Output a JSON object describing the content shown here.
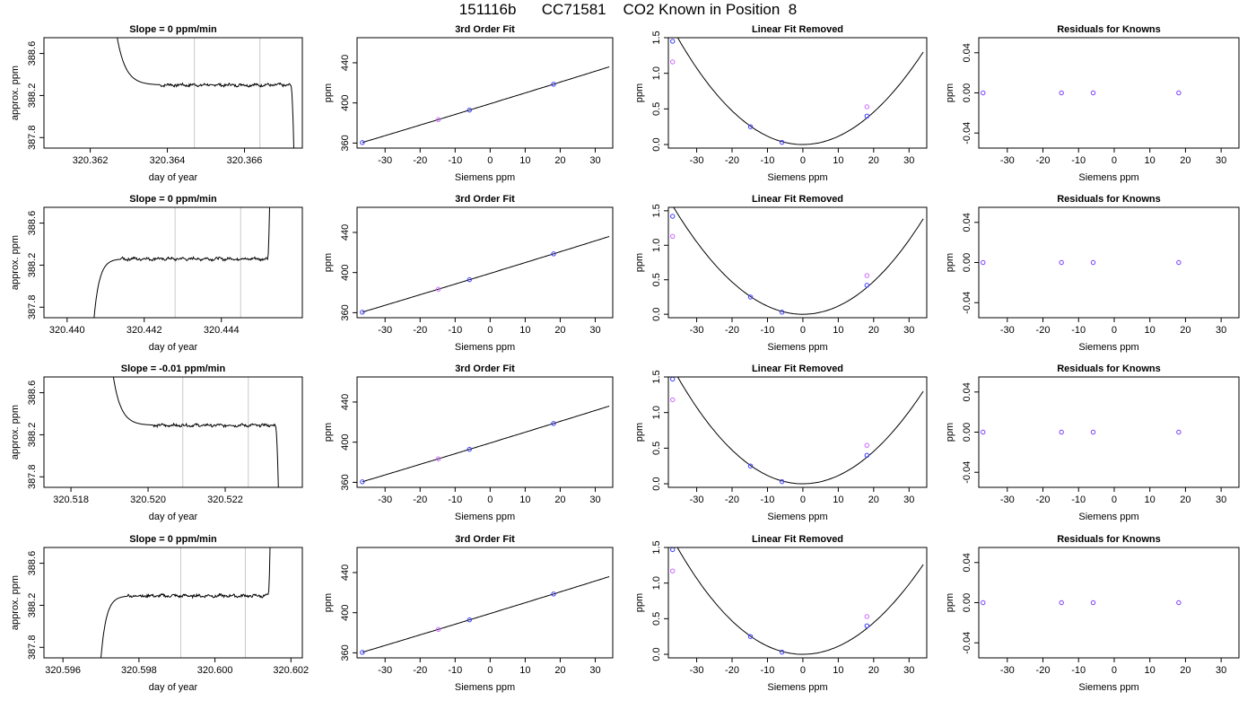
{
  "page": {
    "title": "151116b      CC71581    CO2 Known in Position  8"
  },
  "chart_data": [
    {
      "type": "line",
      "title": "Slope =  0  ppm/min",
      "xlabel": "day of year",
      "ylabel": "approx. ppm",
      "xlim": [
        320.3608,
        320.3675
      ],
      "ylim": [
        387.7,
        388.75
      ],
      "x_ticks": [
        "320.362",
        "320.364",
        "320.366"
      ],
      "x_tick_values": [
        320.362,
        320.364,
        320.366
      ],
      "y_ticks": [
        "387.8",
        "388.2",
        "388.6"
      ],
      "y_tick_values": [
        387.8,
        388.2,
        388.6
      ],
      "vlines": [
        320.3647,
        320.3664
      ],
      "vline_color": "#c8c8c8",
      "trace": {
        "steady": 388.3,
        "noise": 0.012,
        "x_start_high": 320.3627,
        "x_settle": 320.3638,
        "x_end_flat": 320.3672,
        "x_end": 320.36728,
        "start_value": 388.75,
        "end_value": 387.7
      },
      "color": "#000000"
    },
    {
      "type": "line",
      "title": "3rd Order Fit",
      "xlabel": "Siemens ppm",
      "ylabel": "ppm",
      "xlim": [
        -38,
        35
      ],
      "ylim": [
        355,
        465
      ],
      "x_ticks": [
        "-30",
        "-20",
        "-10",
        "0",
        "10",
        "20",
        "30"
      ],
      "x_tick_values": [
        -30,
        -20,
        -10,
        0,
        10,
        20,
        30
      ],
      "y_ticks": [
        "360",
        "400",
        "440"
      ],
      "y_tick_values": [
        360,
        400,
        440
      ],
      "curve": {
        "from": -36.5,
        "to": 34,
        "coef": [
          399.2,
          1.07,
          0.0003,
          0
        ]
      },
      "points": [
        {
          "x": -36.5,
          "y": 360.5,
          "color": "#3a3aff"
        },
        {
          "x": -14.8,
          "y": 383.4,
          "color": "#cc66ff"
        },
        {
          "x": -5.9,
          "y": 392.9,
          "color": "#3a3aff"
        },
        {
          "x": 18.1,
          "y": 418.6,
          "color": "#3a3aff"
        }
      ]
    },
    {
      "type": "line",
      "title": "Linear Fit Removed",
      "xlabel": "Siemens ppm",
      "ylabel": "ppm",
      "xlim": [
        -38,
        35
      ],
      "ylim": [
        -0.05,
        1.5
      ],
      "x_ticks": [
        "-30",
        "-20",
        "-10",
        "0",
        "10",
        "20",
        "30"
      ],
      "x_tick_values": [
        -30,
        -20,
        -10,
        0,
        10,
        20,
        30
      ],
      "y_ticks": [
        "0.0",
        "0.5",
        "1.0",
        "1.5"
      ],
      "y_tick_values": [
        0.0,
        0.5,
        1.0,
        1.5
      ],
      "curve": {
        "from": -36.8,
        "to": 34,
        "coef": [
          0,
          0,
          0.00116,
          -1.1e-06
        ]
      },
      "points": [
        {
          "x": -36.8,
          "y": 1.45,
          "color": "#3a3aff"
        },
        {
          "x": -36.8,
          "y": 1.16,
          "color": "#cc66ff"
        },
        {
          "x": -14.8,
          "y": 0.25,
          "color": "#3a3aff"
        },
        {
          "x": -5.9,
          "y": 0.03,
          "color": "#3a3aff"
        },
        {
          "x": 18.1,
          "y": 0.4,
          "color": "#3a3aff"
        },
        {
          "x": 18.1,
          "y": 0.53,
          "color": "#cc66ff"
        }
      ]
    },
    {
      "type": "scatter",
      "title": "Residuals for Knowns",
      "xlabel": "Siemens ppm",
      "ylabel": "ppm",
      "xlim": [
        -38,
        35
      ],
      "ylim": [
        -0.055,
        0.055
      ],
      "x_ticks": [
        "-30",
        "-20",
        "-10",
        "0",
        "10",
        "20",
        "30"
      ],
      "x_tick_values": [
        -30,
        -20,
        -10,
        0,
        10,
        20,
        30
      ],
      "y_ticks": [
        "-0.04",
        "0.00",
        "0.04"
      ],
      "y_tick_values": [
        -0.04,
        0.0,
        0.04
      ],
      "points": [
        {
          "x": -36.8,
          "y": 0,
          "color": "#7a3aff"
        },
        {
          "x": -14.8,
          "y": 0,
          "color": "#7a3aff"
        },
        {
          "x": -5.9,
          "y": 0,
          "color": "#7a3aff"
        },
        {
          "x": 18.1,
          "y": 0,
          "color": "#7a3aff"
        }
      ]
    },
    {
      "type": "line",
      "title": "Slope =  0  ppm/min",
      "xlabel": "day of year",
      "ylabel": "approx. ppm",
      "xlim": [
        320.4394,
        320.4461
      ],
      "ylim": [
        387.7,
        388.75
      ],
      "x_ticks": [
        "320.440",
        "320.442",
        "320.444"
      ],
      "x_tick_values": [
        320.44,
        320.442,
        320.444
      ],
      "y_ticks": [
        "387.8",
        "388.2",
        "388.6"
      ],
      "y_tick_values": [
        387.8,
        388.2,
        388.6
      ],
      "vlines": [
        320.4428,
        320.4445
      ],
      "vline_color": "#c8c8c8",
      "trace": {
        "steady": 388.26,
        "noise": 0.012,
        "x_start_low": 320.4407,
        "x_settle": 320.4414,
        "x_end_flat": 320.4452,
        "x_end": 320.44525,
        "start_value": 387.7,
        "end_value": 388.75
      },
      "color": "#000000"
    },
    {
      "type": "line",
      "title": "3rd Order Fit",
      "xlabel": "Siemens ppm",
      "ylabel": "ppm",
      "xlim": [
        -38,
        35
      ],
      "ylim": [
        355,
        465
      ],
      "x_ticks": [
        "-30",
        "-20",
        "-10",
        "0",
        "10",
        "20",
        "30"
      ],
      "x_tick_values": [
        -30,
        -20,
        -10,
        0,
        10,
        20,
        30
      ],
      "y_ticks": [
        "360",
        "400",
        "440"
      ],
      "y_tick_values": [
        360,
        400,
        440
      ],
      "curve": {
        "from": -36.5,
        "to": 34,
        "coef": [
          399.2,
          1.07,
          0.0003,
          0
        ]
      },
      "points": [
        {
          "x": -36.5,
          "y": 360.5,
          "color": "#3a3aff"
        },
        {
          "x": -14.8,
          "y": 383.4,
          "color": "#cc66ff"
        },
        {
          "x": -5.9,
          "y": 392.9,
          "color": "#3a3aff"
        },
        {
          "x": 18.1,
          "y": 418.6,
          "color": "#3a3aff"
        }
      ]
    },
    {
      "type": "line",
      "title": "Linear Fit Removed",
      "xlabel": "Siemens ppm",
      "ylabel": "ppm",
      "xlim": [
        -38,
        35
      ],
      "ylim": [
        -0.05,
        1.55
      ],
      "x_ticks": [
        "-30",
        "-20",
        "-10",
        "0",
        "10",
        "20",
        "30"
      ],
      "x_tick_values": [
        -30,
        -20,
        -10,
        0,
        10,
        20,
        30
      ],
      "y_ticks": [
        "0.0",
        "0.5",
        "1.0",
        "1.5"
      ],
      "y_tick_values": [
        0.0,
        0.5,
        1.0,
        1.5
      ],
      "curve": {
        "from": -36.8,
        "to": 34,
        "coef": [
          0,
          0,
          0.00118,
          5e-07
        ]
      },
      "points": [
        {
          "x": -36.8,
          "y": 1.42,
          "color": "#3a3aff"
        },
        {
          "x": -36.8,
          "y": 1.13,
          "color": "#cc66ff"
        },
        {
          "x": -14.8,
          "y": 0.25,
          "color": "#3a3aff"
        },
        {
          "x": -5.9,
          "y": 0.03,
          "color": "#3a3aff"
        },
        {
          "x": 18.1,
          "y": 0.42,
          "color": "#3a3aff"
        },
        {
          "x": 18.1,
          "y": 0.56,
          "color": "#cc66ff"
        }
      ]
    },
    {
      "type": "scatter",
      "title": "Residuals for Knowns",
      "xlabel": "Siemens ppm",
      "ylabel": "ppm",
      "xlim": [
        -38,
        35
      ],
      "ylim": [
        -0.055,
        0.055
      ],
      "x_ticks": [
        "-30",
        "-20",
        "-10",
        "0",
        "10",
        "20",
        "30"
      ],
      "x_tick_values": [
        -30,
        -20,
        -10,
        0,
        10,
        20,
        30
      ],
      "y_ticks": [
        "-0.04",
        "0.00",
        "0.04"
      ],
      "y_tick_values": [
        -0.04,
        0.0,
        0.04
      ],
      "points": [
        {
          "x": -36.8,
          "y": 0,
          "color": "#7a3aff"
        },
        {
          "x": -14.8,
          "y": 0,
          "color": "#7a3aff"
        },
        {
          "x": -5.9,
          "y": 0,
          "color": "#7a3aff"
        },
        {
          "x": 18.1,
          "y": 0,
          "color": "#7a3aff"
        }
      ]
    },
    {
      "type": "line",
      "title": "Slope =  -0.01  ppm/min",
      "xlabel": "day of year",
      "ylabel": "approx. ppm",
      "xlim": [
        320.5173,
        320.524
      ],
      "ylim": [
        387.7,
        388.75
      ],
      "x_ticks": [
        "320.518",
        "320.520",
        "320.522"
      ],
      "x_tick_values": [
        320.518,
        320.52,
        320.522
      ],
      "y_ticks": [
        "387.8",
        "388.2",
        "388.6"
      ],
      "y_tick_values": [
        387.8,
        388.2,
        388.6
      ],
      "vlines": [
        320.5209,
        320.5226
      ],
      "vline_color": "#c8c8c8",
      "trace": {
        "steady": 388.29,
        "noise": 0.011,
        "x_start_high": 320.5191,
        "x_settle": 320.5201,
        "x_end_flat": 320.5233,
        "x_end": 320.52338,
        "start_value": 388.75,
        "end_value": 387.7
      },
      "color": "#000000"
    },
    {
      "type": "line",
      "title": "3rd Order Fit",
      "xlabel": "Siemens ppm",
      "ylabel": "ppm",
      "xlim": [
        -38,
        35
      ],
      "ylim": [
        355,
        465
      ],
      "x_ticks": [
        "-30",
        "-20",
        "-10",
        "0",
        "10",
        "20",
        "30"
      ],
      "x_tick_values": [
        -30,
        -20,
        -10,
        0,
        10,
        20,
        30
      ],
      "y_ticks": [
        "360",
        "400",
        "440"
      ],
      "y_tick_values": [
        360,
        400,
        440
      ],
      "curve": {
        "from": -36.5,
        "to": 34,
        "coef": [
          399.2,
          1.07,
          0.0003,
          0
        ]
      },
      "points": [
        {
          "x": -36.5,
          "y": 360.5,
          "color": "#3a3aff"
        },
        {
          "x": -14.8,
          "y": 383.4,
          "color": "#cc66ff"
        },
        {
          "x": -5.9,
          "y": 392.9,
          "color": "#3a3aff"
        },
        {
          "x": 18.1,
          "y": 418.6,
          "color": "#3a3aff"
        }
      ]
    },
    {
      "type": "line",
      "title": "Linear Fit Removed",
      "xlabel": "Siemens ppm",
      "ylabel": "ppm",
      "xlim": [
        -38,
        35
      ],
      "ylim": [
        -0.05,
        1.5
      ],
      "x_ticks": [
        "-30",
        "-20",
        "-10",
        "0",
        "10",
        "20",
        "30"
      ],
      "x_tick_values": [
        -30,
        -20,
        -10,
        0,
        10,
        20,
        30
      ],
      "y_ticks": [
        "0.0",
        "0.5",
        "1.0",
        "1.5"
      ],
      "y_tick_values": [
        0.0,
        0.5,
        1.0,
        1.5
      ],
      "curve": {
        "from": -36.8,
        "to": 34,
        "coef": [
          0,
          0,
          0.00116,
          -1.1e-06
        ]
      },
      "points": [
        {
          "x": -36.8,
          "y": 1.47,
          "color": "#3a3aff"
        },
        {
          "x": -36.8,
          "y": 1.18,
          "color": "#cc66ff"
        },
        {
          "x": -14.8,
          "y": 0.25,
          "color": "#3a3aff"
        },
        {
          "x": -5.9,
          "y": 0.03,
          "color": "#3a3aff"
        },
        {
          "x": 18.1,
          "y": 0.4,
          "color": "#3a3aff"
        },
        {
          "x": 18.1,
          "y": 0.54,
          "color": "#cc66ff"
        }
      ]
    },
    {
      "type": "scatter",
      "title": "Residuals for Knowns",
      "xlabel": "Siemens ppm",
      "ylabel": "ppm",
      "xlim": [
        -38,
        35
      ],
      "ylim": [
        -0.055,
        0.055
      ],
      "x_ticks": [
        "-30",
        "-20",
        "-10",
        "0",
        "10",
        "20",
        "30"
      ],
      "x_tick_values": [
        -30,
        -20,
        -10,
        0,
        10,
        20,
        30
      ],
      "y_ticks": [
        "-0.04",
        "0.00",
        "0.04"
      ],
      "y_tick_values": [
        -0.04,
        0.0,
        0.04
      ],
      "points": [
        {
          "x": -36.8,
          "y": 0,
          "color": "#7a3aff"
        },
        {
          "x": -14.8,
          "y": 0,
          "color": "#7a3aff"
        },
        {
          "x": -5.9,
          "y": 0,
          "color": "#7a3aff"
        },
        {
          "x": 18.1,
          "y": 0,
          "color": "#7a3aff"
        }
      ]
    },
    {
      "type": "line",
      "title": "Slope =  0  ppm/min",
      "xlabel": "day of year",
      "ylabel": "approx. ppm",
      "xlim": [
        320.5955,
        320.6023
      ],
      "ylim": [
        387.7,
        388.75
      ],
      "x_ticks": [
        "320.596",
        "320.598",
        "320.600",
        "320.602"
      ],
      "x_tick_values": [
        320.596,
        320.598,
        320.6,
        320.602
      ],
      "y_ticks": [
        "387.8",
        "388.2",
        "388.6"
      ],
      "y_tick_values": [
        387.8,
        388.2,
        388.6
      ],
      "vlines": [
        320.5991,
        320.6008
      ],
      "vline_color": "#c8c8c8",
      "trace": {
        "steady": 388.29,
        "noise": 0.012,
        "x_start_low": 320.597,
        "x_settle": 320.5977,
        "x_end_flat": 320.6014,
        "x_end": 320.60145,
        "start_value": 387.7,
        "end_value": 388.75
      },
      "color": "#000000"
    },
    {
      "type": "line",
      "title": "3rd Order Fit",
      "xlabel": "Siemens ppm",
      "ylabel": "ppm",
      "xlim": [
        -38,
        35
      ],
      "ylim": [
        355,
        465
      ],
      "x_ticks": [
        "-30",
        "-20",
        "-10",
        "0",
        "10",
        "20",
        "30"
      ],
      "x_tick_values": [
        -30,
        -20,
        -10,
        0,
        10,
        20,
        30
      ],
      "y_ticks": [
        "360",
        "400",
        "440"
      ],
      "y_tick_values": [
        360,
        400,
        440
      ],
      "curve": {
        "from": -36.5,
        "to": 34,
        "coef": [
          399.2,
          1.07,
          0.0003,
          0
        ]
      },
      "points": [
        {
          "x": -36.5,
          "y": 360.5,
          "color": "#3a3aff"
        },
        {
          "x": -14.8,
          "y": 383.4,
          "color": "#cc66ff"
        },
        {
          "x": -5.9,
          "y": 392.9,
          "color": "#3a3aff"
        },
        {
          "x": 18.1,
          "y": 418.6,
          "color": "#3a3aff"
        }
      ]
    },
    {
      "type": "line",
      "title": "Linear Fit Removed",
      "xlabel": "Siemens ppm",
      "ylabel": "ppm",
      "xlim": [
        -38,
        35
      ],
      "ylim": [
        -0.05,
        1.5
      ],
      "x_ticks": [
        "-30",
        "-20",
        "-10",
        "0",
        "10",
        "20",
        "30"
      ],
      "x_tick_values": [
        -30,
        -20,
        -10,
        0,
        10,
        20,
        30
      ],
      "y_ticks": [
        "0.0",
        "0.5",
        "1.0",
        "1.5"
      ],
      "y_tick_values": [
        0.0,
        0.5,
        1.0,
        1.5
      ],
      "curve": {
        "from": -36.8,
        "to": 34,
        "coef": [
          0,
          0,
          0.00114,
          -1.5e-06
        ]
      },
      "points": [
        {
          "x": -36.8,
          "y": 1.47,
          "color": "#3a3aff"
        },
        {
          "x": -36.8,
          "y": 1.17,
          "color": "#cc66ff"
        },
        {
          "x": -14.8,
          "y": 0.25,
          "color": "#3a3aff"
        },
        {
          "x": -5.9,
          "y": 0.03,
          "color": "#3a3aff"
        },
        {
          "x": 18.1,
          "y": 0.4,
          "color": "#3a3aff"
        },
        {
          "x": 18.1,
          "y": 0.53,
          "color": "#cc66ff"
        }
      ]
    },
    {
      "type": "scatter",
      "title": "Residuals for Knowns",
      "xlabel": "Siemens ppm",
      "ylabel": "ppm",
      "xlim": [
        -38,
        35
      ],
      "ylim": [
        -0.055,
        0.055
      ],
      "x_ticks": [
        "-30",
        "-20",
        "-10",
        "0",
        "10",
        "20",
        "30"
      ],
      "x_tick_values": [
        -30,
        -20,
        -10,
        0,
        10,
        20,
        30
      ],
      "y_ticks": [
        "-0.04",
        "0.00",
        "0.04"
      ],
      "y_tick_values": [
        -0.04,
        0.0,
        0.04
      ],
      "points": [
        {
          "x": -36.8,
          "y": 0,
          "color": "#7a3aff"
        },
        {
          "x": -14.8,
          "y": 0,
          "color": "#7a3aff"
        },
        {
          "x": -5.9,
          "y": 0,
          "color": "#7a3aff"
        },
        {
          "x": 18.1,
          "y": 0,
          "color": "#7a3aff"
        }
      ]
    }
  ]
}
